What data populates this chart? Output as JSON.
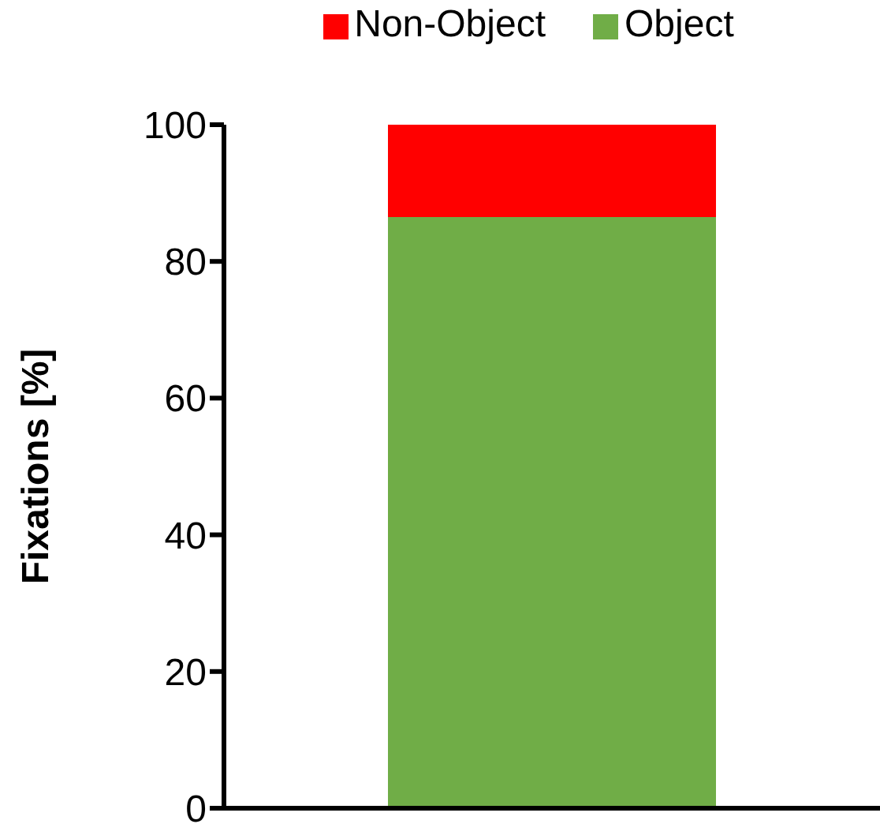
{
  "chart_data": {
    "type": "bar",
    "stacked": true,
    "categories": [
      null
    ],
    "ylabel": "Fixations [%]",
    "ylim": [
      0,
      100
    ],
    "yticks": [
      0,
      20,
      40,
      60,
      80,
      100
    ],
    "grid": false,
    "legend": "top",
    "series": [
      {
        "name": "Object",
        "color": "#70ad47",
        "values": [
          86.5
        ]
      },
      {
        "name": "Non-Object",
        "color": "#ff0000",
        "values": [
          13.5
        ]
      }
    ]
  }
}
